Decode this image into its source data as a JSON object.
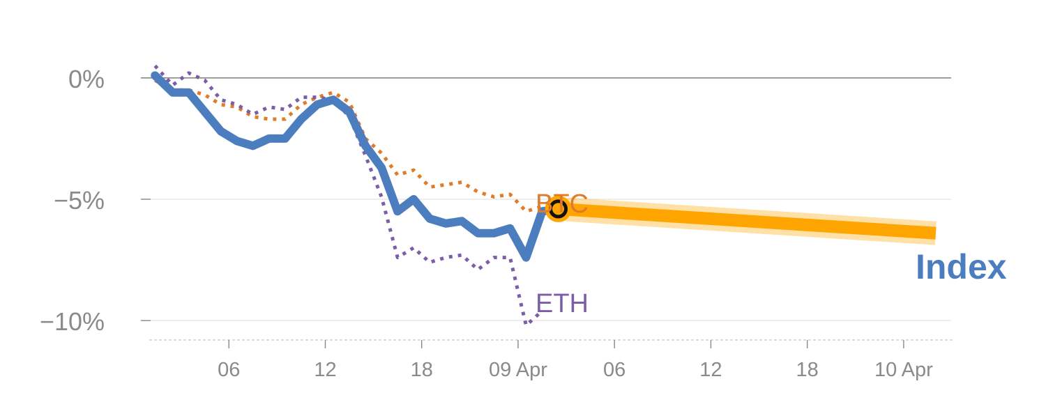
{
  "chart_data": {
    "type": "line",
    "xlim_hours": [
      0,
      51
    ],
    "ylim": [
      -10.8,
      1.2
    ],
    "y_ticks": [
      {
        "value": 0,
        "label": "0%"
      },
      {
        "value": -5,
        "label": "−5%"
      },
      {
        "value": -10,
        "label": "−10%"
      }
    ],
    "x_ticks": [
      {
        "hour": 6,
        "label": "06"
      },
      {
        "hour": 12,
        "label": "12"
      },
      {
        "hour": 18,
        "label": "18"
      },
      {
        "hour": 24,
        "label": "09 Apr"
      },
      {
        "hour": 30,
        "label": "06"
      },
      {
        "hour": 36,
        "label": "12"
      },
      {
        "hour": 42,
        "label": "18"
      },
      {
        "hour": 48,
        "label": "10 Apr"
      }
    ],
    "series": [
      {
        "name": "Index",
        "label": "Index",
        "color": "#4c7ebf",
        "style": "solid",
        "x": [
          1.4,
          2.5,
          3.5,
          4.5,
          5.5,
          6.5,
          7.5,
          8.5,
          9.5,
          10.5,
          11.5,
          12.5,
          13.5,
          14.5,
          15.5,
          16.5,
          17.5,
          18.5,
          19.5,
          20.5,
          21.5,
          22.5,
          23.5,
          24.5,
          25.5,
          26.5
        ],
        "values": [
          0.1,
          -0.6,
          -0.6,
          -1.4,
          -2.2,
          -2.6,
          -2.8,
          -2.5,
          -2.5,
          -1.7,
          -1.1,
          -0.9,
          -1.4,
          -2.8,
          -3.7,
          -5.5,
          -5.0,
          -5.8,
          -6.0,
          -5.9,
          -6.4,
          -6.4,
          -6.2,
          -7.4,
          -5.5,
          -5.4
        ]
      },
      {
        "name": "BTC",
        "label": "BTC",
        "color": "#e07b2a",
        "style": "dotted",
        "x": [
          1.4,
          2.5,
          3.5,
          4.5,
          5.5,
          6.5,
          7.5,
          8.5,
          9.5,
          10.5,
          11.5,
          12.5,
          13.5,
          14.5,
          15.5,
          16.5,
          17.5,
          18.5,
          19.5,
          20.5,
          21.5,
          22.5,
          23.5,
          24.5,
          25.5,
          26.5
        ],
        "values": [
          -0.1,
          -0.5,
          -0.5,
          -0.7,
          -1.1,
          -1.2,
          -1.6,
          -1.7,
          -1.7,
          -1.1,
          -0.8,
          -0.6,
          -1.0,
          -2.5,
          -3.1,
          -4.0,
          -3.8,
          -4.5,
          -4.4,
          -4.3,
          -4.7,
          -4.9,
          -4.8,
          -5.5,
          -5.3,
          -5.4
        ]
      },
      {
        "name": "ETH",
        "label": "ETH",
        "color": "#7b5ea7",
        "style": "dotted",
        "x": [
          1.4,
          2.5,
          3.5,
          4.5,
          5.5,
          6.5,
          7.5,
          8.5,
          9.5,
          10.5,
          11.5,
          12.5,
          13.5,
          14.5,
          15.5,
          16.5,
          17.5,
          18.5,
          19.5,
          20.5,
          21.5,
          22.5,
          23.5,
          24.5,
          25.5
        ],
        "values": [
          0.5,
          -0.3,
          0.2,
          -0.1,
          -0.9,
          -1.1,
          -1.5,
          -1.2,
          -1.3,
          -0.8,
          -0.8,
          -0.9,
          -1.6,
          -3.2,
          -4.9,
          -7.4,
          -7.0,
          -7.6,
          -7.4,
          -7.3,
          -7.9,
          -7.4,
          -7.4,
          -10.2,
          -9.6
        ]
      }
    ],
    "forecast": {
      "name": "Index forecast",
      "color": "#ffa500",
      "x": [
        26.5,
        50.0
      ],
      "values": [
        -5.4,
        -6.4
      ]
    },
    "marker": {
      "name": "current-point",
      "x": 26.5,
      "value": -5.4
    }
  }
}
